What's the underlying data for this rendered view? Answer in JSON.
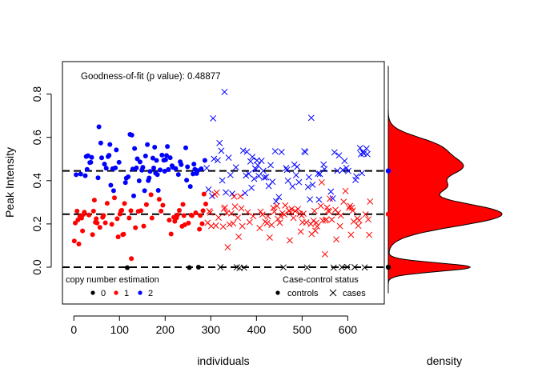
{
  "chart_data": {
    "type": "scatter",
    "title": "",
    "xlabel": "individuals",
    "ylabel": "Peak Intensity",
    "density_label": "density",
    "xlim": [
      -25,
      680
    ],
    "ylim": [
      -0.17,
      0.95
    ],
    "x_ticks": [
      0,
      100,
      200,
      300,
      400,
      500,
      600
    ],
    "y_ticks": [
      0.0,
      0.2,
      0.4,
      0.6,
      0.8
    ],
    "y_tick_labels": [
      "0.0",
      "0.2",
      "0.4",
      "0.6",
      "0.8"
    ],
    "goodness_of_fit_label": "Goodness-of-fit (p value): 0.48877",
    "cluster_means": [
      0.0,
      0.245,
      0.445
    ],
    "colors": {
      "0": "#000000",
      "1": "#ff0000",
      "2": "#0000ff",
      "density_fill": "#ff0000"
    },
    "legend_cn": {
      "title": "copy number estimation",
      "entries": [
        "0",
        "1",
        "2"
      ],
      "placement": "bottom-left"
    },
    "legend_status": {
      "title": "Case-control status",
      "entries": [
        "controls",
        "cases"
      ],
      "placement": "bottom-right"
    },
    "groups": {
      "controls": {
        "x_range": [
          1,
          290
        ],
        "marker": "dot"
      },
      "cases": {
        "x_range": [
          291,
          650
        ],
        "marker": "cross"
      }
    },
    "series": [
      {
        "name": "0",
        "description": "copy number 0, near 0.0, mostly x 100-650"
      },
      {
        "name": "1",
        "description": "copy number 1, centered near 0.245"
      },
      {
        "name": "2",
        "description": "copy number 2, centered near 0.47"
      }
    ],
    "density": {
      "peaks": [
        {
          "center": 0.0,
          "width": 0.02,
          "height": 0.72
        },
        {
          "center": 0.245,
          "width": 0.055,
          "height": 1.0
        },
        {
          "center": 0.37,
          "width": 0.03,
          "height": 0.32
        },
        {
          "center": 0.46,
          "width": 0.05,
          "height": 0.62
        },
        {
          "center": 0.56,
          "width": 0.045,
          "height": 0.38
        }
      ],
      "range": [
        -0.12,
        0.93
      ]
    }
  }
}
